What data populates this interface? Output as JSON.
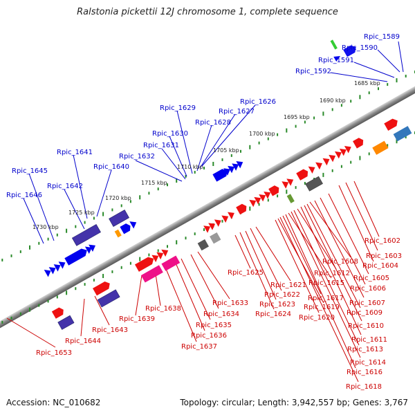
{
  "title": "Ralstonia pickettii 12J chromosome 1, complete sequence",
  "accession": "Accession: NC_010682",
  "topology": "Topology: circular; Length: 3,942,557 bp; Genes: 3,767",
  "kbp_labels": [
    "1685 kbp",
    "1690 kbp",
    "1695 kbp",
    "1700 kbp",
    "1705 kbp",
    "1710 kbp",
    "1715 kbp",
    "1720 kbp",
    "1725 kbp",
    "1730 kbp"
  ],
  "top_labels": [
    "Rpic_1589",
    "Rpic_1590",
    "Rpic_1591",
    "Rpic_1592",
    "Rpic_1626",
    "Rpic_1627",
    "Rpic_1628",
    "Rpic_1629",
    "Rpic_1630",
    "Rpic_1631",
    "Rpic_1632",
    "Rpic_1640",
    "Rpic_1641",
    "Rpic_1642",
    "Rpic_1645",
    "Rpic_1646"
  ],
  "bottom_labels": [
    "Rpic_1602",
    "Rpic_1603",
    "Rpic_1604",
    "Rpic_1605",
    "Rpic_1606",
    "Rpic_1607",
    "Rpic_1608",
    "Rpic_1609",
    "Rpic_1610",
    "Rpic_1611",
    "Rpic_1612",
    "Rpic_1613",
    "Rpic_1614",
    "Rpic_1615",
    "Rpic_1616",
    "Rpic_1617",
    "Rpic_1618",
    "Rpic_1619",
    "Rpic_1620",
    "Rpic_1621",
    "Rpic_1622",
    "Rpic_1623",
    "Rpic_1624",
    "Rpic_1625",
    "Rpic_1633",
    "Rpic_1634",
    "Rpic_1635",
    "Rpic_1636",
    "Rpic_1637",
    "Rpic_1638",
    "Rpic_1639",
    "Rpic_1643",
    "Rpic_1644",
    "Rpic_1653"
  ],
  "colors": {
    "top_label": "#0000cc",
    "bottom_label": "#cc0000",
    "backbone": "#8a8a8a",
    "ruler_tick": "#2a8a2a"
  }
}
